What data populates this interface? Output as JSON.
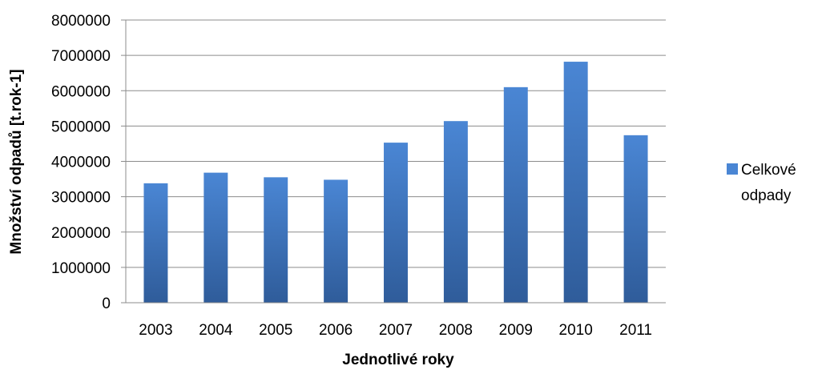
{
  "chart_data": {
    "type": "bar",
    "title": "",
    "xlabel": "Jednotlivé roky",
    "ylabel": "Množství odpadů [t.rok-1]",
    "categories": [
      "2003",
      "2004",
      "2005",
      "2006",
      "2007",
      "2008",
      "2009",
      "2010",
      "2011"
    ],
    "series": [
      {
        "name": "Celkové odpady",
        "values": [
          3380000,
          3680000,
          3550000,
          3480000,
          4530000,
          5140000,
          6100000,
          6820000,
          4740000
        ]
      }
    ],
    "ylim": [
      0,
      8000000
    ],
    "yticks": [
      0,
      1000000,
      2000000,
      3000000,
      4000000,
      5000000,
      6000000,
      7000000,
      8000000
    ],
    "ytick_labels": [
      "0",
      "1000000",
      "2000000",
      "3000000",
      "4000000",
      "5000000",
      "6000000",
      "7000000",
      "8000000"
    ],
    "grid": true,
    "legend_position": "right",
    "legend_label_lines": [
      "Celkové",
      "odpady"
    ],
    "colors": {
      "bar_light": "#4a86d4",
      "bar_dark": "#2f5c9a",
      "grid": "#8c8c8c",
      "axis": "#8c8c8c"
    }
  }
}
